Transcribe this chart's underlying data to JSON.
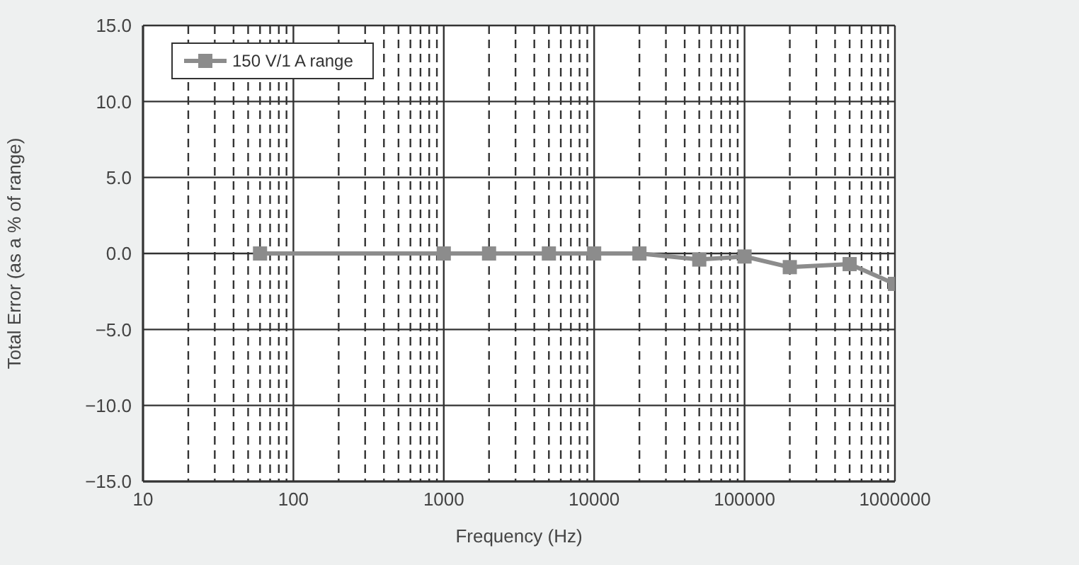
{
  "chart_data": {
    "type": "line",
    "xlabel": "Frequency (Hz)",
    "ylabel": "Total Error (as a % of range)",
    "x": [
      60,
      1000,
      2000,
      5000,
      10000,
      20000,
      50000,
      100000,
      200000,
      500000,
      1000000
    ],
    "series": [
      {
        "name": "150 V/1 A range",
        "color": "#8c8c8c",
        "values": [
          0,
          0,
          0,
          0,
          0,
          0,
          -0.4,
          -0.2,
          -0.9,
          -0.7,
          -2.0
        ]
      }
    ],
    "log": "x",
    "xlim": [
      10,
      1000000
    ],
    "xticks": [
      10,
      {
        "value": 20,
        "label": null
      },
      {
        "value": 30,
        "label": null
      },
      {
        "value": 40,
        "label": null
      },
      {
        "value": 50,
        "label": null
      },
      {
        "value": 60,
        "label": null
      },
      {
        "value": 70,
        "label": null
      },
      {
        "value": 80,
        "label": null
      },
      {
        "value": 90,
        "label": null
      },
      100,
      {
        "value": 200,
        "label": null
      },
      {
        "value": 300,
        "label": null
      },
      {
        "value": 400,
        "label": null
      },
      {
        "value": 500,
        "label": null
      },
      {
        "value": 600,
        "label": null
      },
      {
        "value": 700,
        "label": null
      },
      {
        "value": 800,
        "label": null
      },
      {
        "value": 900,
        "label": null
      },
      1000,
      {
        "value": 2000,
        "label": null
      },
      {
        "value": 3000,
        "label": null
      },
      {
        "value": 4000,
        "label": null
      },
      {
        "value": 5000,
        "label": null
      },
      {
        "value": 6000,
        "label": null
      },
      {
        "value": 7000,
        "label": null
      },
      {
        "value": 8000,
        "label": null
      },
      {
        "value": 9000,
        "label": null
      },
      10000,
      {
        "value": 20000,
        "label": null
      },
      {
        "value": 30000,
        "label": null
      },
      {
        "value": 40000,
        "label": null
      },
      {
        "value": 50000,
        "label": null
      },
      {
        "value": 60000,
        "label": null
      },
      {
        "value": 70000,
        "label": null
      },
      {
        "value": 80000,
        "label": null
      },
      {
        "value": 90000,
        "label": null
      },
      100000,
      {
        "value": 200000,
        "label": null
      },
      {
        "value": 300000,
        "label": null
      },
      {
        "value": 400000,
        "label": null
      },
      {
        "value": 500000,
        "label": null
      },
      {
        "value": 600000,
        "label": null
      },
      {
        "value": 700000,
        "label": null
      },
      {
        "value": 800000,
        "label": null
      },
      {
        "value": 900000,
        "label": null
      },
      1000000
    ],
    "ylim": [
      -15,
      15
    ],
    "yticks": [
      {
        "value": -15,
        "label": "−15.0"
      },
      {
        "value": -10,
        "label": "−10.0"
      },
      {
        "value": -5,
        "label": "−5.0"
      },
      {
        "value": 0,
        "label": "0.0"
      },
      {
        "value": 5,
        "label": "5.0"
      },
      {
        "value": 10,
        "label": "10.0"
      },
      {
        "value": 15,
        "label": "15.0"
      }
    ],
    "grid": true,
    "legend": "top left",
    "marker": "square",
    "line_style": "solid"
  }
}
